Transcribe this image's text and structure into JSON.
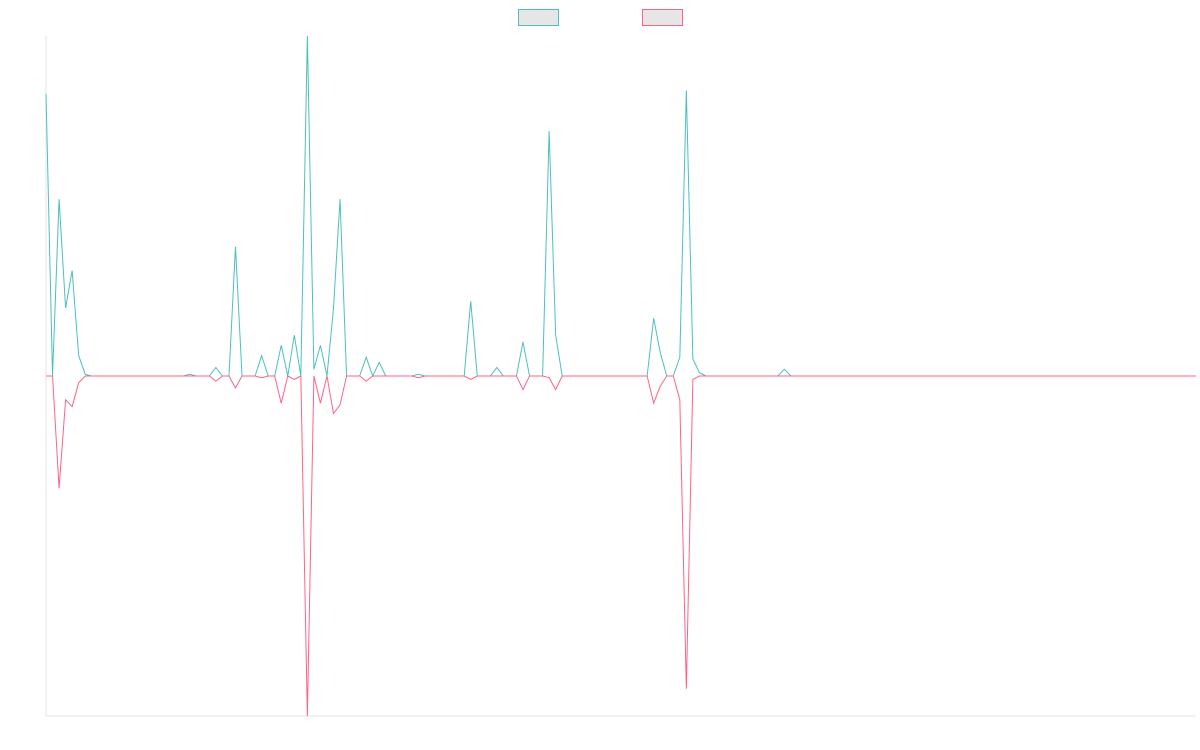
{
  "chart_data": {
    "type": "line",
    "title": "",
    "xlabel": "",
    "ylabel": "",
    "x_range": [
      0,
      176
    ],
    "ylim": [
      -1,
      1
    ],
    "grid": false,
    "legend": {
      "placement": "top-center"
    },
    "series": [
      {
        "color": "#4bc0c0",
        "spikes": [
          [
            0,
            0.83
          ],
          [
            2,
            0.52
          ],
          [
            3,
            0.2
          ],
          [
            4,
            0.31
          ],
          [
            5,
            0.06
          ],
          [
            6,
            0.005
          ],
          [
            22,
            0.005
          ],
          [
            26,
            0.025
          ],
          [
            29,
            0.38
          ],
          [
            33,
            0.06
          ],
          [
            36,
            0.09
          ],
          [
            38,
            0.12
          ],
          [
            40,
            1.0
          ],
          [
            41,
            0.02
          ],
          [
            42,
            0.09
          ],
          [
            44,
            0.2
          ],
          [
            45,
            0.52
          ],
          [
            49,
            0.055
          ],
          [
            51,
            0.04
          ],
          [
            57,
            0.005
          ],
          [
            65,
            0.22
          ],
          [
            69,
            0.025
          ],
          [
            73,
            0.1
          ],
          [
            77,
            0.72
          ],
          [
            78,
            0.12
          ],
          [
            93,
            0.17
          ],
          [
            94,
            0.07
          ],
          [
            97,
            0.055
          ],
          [
            98,
            0.84
          ],
          [
            99,
            0.05
          ],
          [
            100,
            0.01
          ],
          [
            113,
            0.02
          ]
        ]
      },
      {
        "color": "#ff6384",
        "spikes": [
          [
            2,
            -0.33
          ],
          [
            3,
            -0.07
          ],
          [
            4,
            -0.09
          ],
          [
            5,
            -0.02
          ],
          [
            26,
            -0.015
          ],
          [
            29,
            -0.035
          ],
          [
            33,
            -0.005
          ],
          [
            36,
            -0.08
          ],
          [
            38,
            -0.01
          ],
          [
            40,
            -1.0
          ],
          [
            42,
            -0.08
          ],
          [
            44,
            -0.11
          ],
          [
            45,
            -0.085
          ],
          [
            49,
            -0.015
          ],
          [
            57,
            -0.005
          ],
          [
            65,
            -0.01
          ],
          [
            73,
            -0.04
          ],
          [
            77,
            -0.005
          ],
          [
            78,
            -0.04
          ],
          [
            93,
            -0.08
          ],
          [
            94,
            -0.03
          ],
          [
            97,
            -0.07
          ],
          [
            98,
            -0.92
          ],
          [
            99,
            -0.01
          ]
        ]
      }
    ]
  }
}
